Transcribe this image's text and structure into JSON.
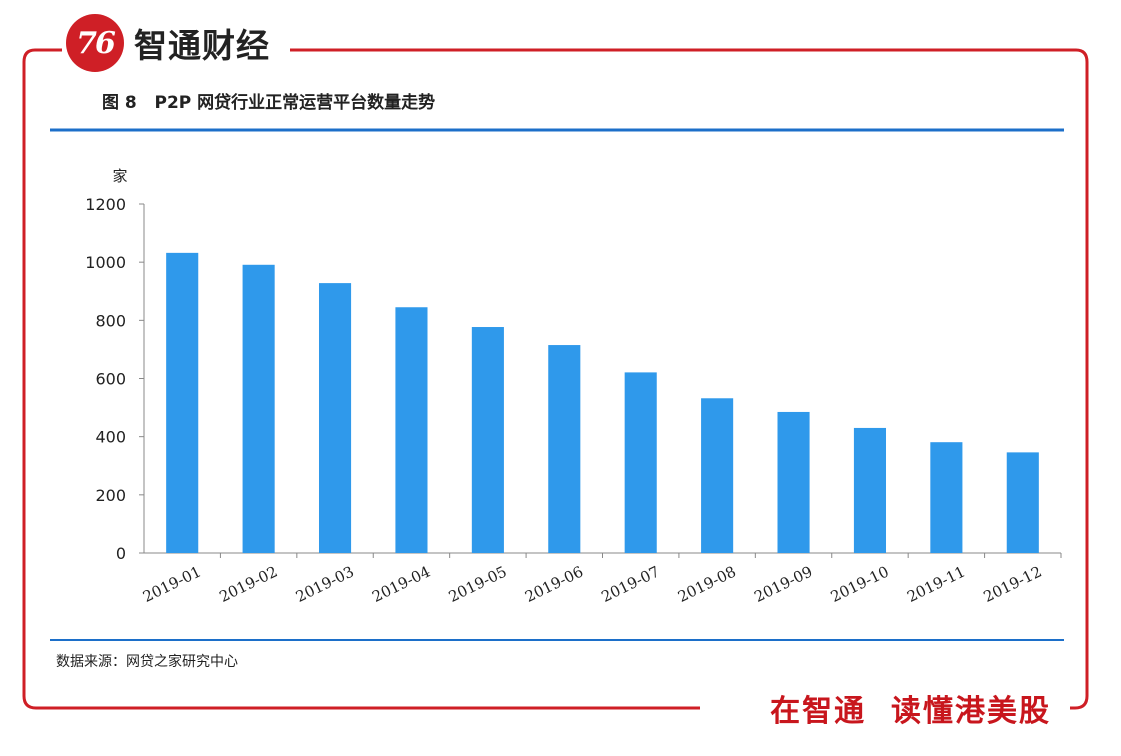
{
  "brand": {
    "logo_glyph": "76",
    "name": "智通财经",
    "slogan": "在智通  读懂港美股",
    "accent_color": "#cf1f26"
  },
  "figure": {
    "title": "图 8   P2P 网贷行业正常运营平台数量走势",
    "source": "数据来源：网贷之家研究中心",
    "rule_color": "#1c6fc9"
  },
  "chart_data": {
    "type": "bar",
    "title": "图 8   P2P 网贷行业正常运营平台数量走势",
    "xlabel": "",
    "ylabel": "家",
    "categories": [
      "2019-01",
      "2019-02",
      "2019-03",
      "2019-04",
      "2019-05",
      "2019-06",
      "2019-07",
      "2019-08",
      "2019-09",
      "2019-10",
      "2019-11",
      "2019-12"
    ],
    "values": [
      1032,
      991,
      928,
      845,
      777,
      715,
      621,
      532,
      485,
      430,
      381,
      346
    ],
    "ylim": [
      0,
      1200
    ],
    "yticks": [
      0,
      200,
      400,
      600,
      800,
      1000,
      1200
    ],
    "bar_color": "#2f99eb",
    "grid": false,
    "legend": "none"
  }
}
